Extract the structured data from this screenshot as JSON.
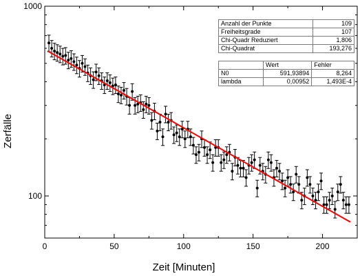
{
  "chart_data": {
    "type": "scatter",
    "xlabel": "Zeit [Minuten]",
    "ylabel": "Zerfälle",
    "xlim": [
      0,
      225
    ],
    "ylim": [
      60,
      1000
    ],
    "yscale": "log",
    "xticks": [
      0,
      50,
      100,
      150,
      200
    ],
    "yticks": [
      100,
      1000
    ],
    "grid": false,
    "series": [
      {
        "kind": "points-with-errorbars",
        "color": "#000000",
        "x": [
          3,
          5,
          7,
          9,
          11,
          13,
          15,
          17,
          19,
          21,
          23,
          25,
          27,
          29,
          31,
          33,
          35,
          37,
          39,
          41,
          43,
          45,
          47,
          49,
          51,
          53,
          55,
          57,
          59,
          61,
          63,
          65,
          67,
          69,
          71,
          73,
          75,
          77,
          79,
          81,
          83,
          85,
          87,
          89,
          91,
          93,
          95,
          97,
          99,
          101,
          103,
          105,
          107,
          109,
          111,
          113,
          115,
          117,
          119,
          121,
          123,
          125,
          127,
          129,
          131,
          133,
          135,
          137,
          139,
          141,
          143,
          145,
          147,
          149,
          151,
          153,
          155,
          157,
          159,
          161,
          163,
          165,
          167,
          169,
          171,
          173,
          175,
          177,
          179,
          181,
          183,
          185,
          187,
          189,
          191,
          193,
          195,
          197,
          199,
          201,
          203,
          205,
          207,
          209,
          211,
          213,
          215,
          217,
          219
        ],
        "y": [
          640,
          600,
          580,
          570,
          560,
          545,
          550,
          520,
          530,
          510,
          490,
          470,
          500,
          480,
          445,
          430,
          410,
          450,
          430,
          405,
          385,
          405,
          395,
          380,
          385,
          345,
          340,
          360,
          335,
          300,
          355,
          300,
          305,
          310,
          285,
          305,
          300,
          250,
          280,
          220,
          245,
          205,
          270,
          245,
          250,
          210,
          215,
          205,
          225,
          200,
          225,
          205,
          185,
          165,
          170,
          200,
          180,
          165,
          175,
          150,
          180,
          180,
          150,
          155,
          165,
          170,
          135,
          160,
          145,
          140,
          140,
          125,
          145,
          150,
          155,
          110,
          145,
          135,
          130,
          155,
          150,
          125,
          140,
          135,
          120,
          110,
          125,
          115,
          105,
          130,
          115,
          95,
          100,
          125,
          115,
          100,
          95,
          105,
          120,
          90,
          90,
          95,
          100,
          85,
          105,
          115,
          95,
          90,
          90
        ],
        "yerr_rel": 0.1
      },
      {
        "kind": "fit-line",
        "color": "#ff0000",
        "model": "N0*exp(-lambda*t)",
        "N0": 591.93894,
        "lambda": 0.00952,
        "x_range": [
          2,
          220
        ]
      }
    ]
  },
  "stats_table": {
    "rows": [
      {
        "label": "Anzahl der Punkte",
        "value": "109"
      },
      {
        "label": "Freiheitsgrade",
        "value": "107"
      },
      {
        "label": "Chi-Quadr Reduziert",
        "value": "1,806"
      },
      {
        "label": "Chi-Quadrat",
        "value": "193,276"
      }
    ]
  },
  "param_table": {
    "header": [
      "",
      "Wert",
      "Fehler"
    ],
    "rows": [
      {
        "label": "N0",
        "value": "591,93894",
        "error": "8,264"
      },
      {
        "label": "lambda",
        "value": "0,00952",
        "error": "1,493E-4"
      }
    ]
  }
}
